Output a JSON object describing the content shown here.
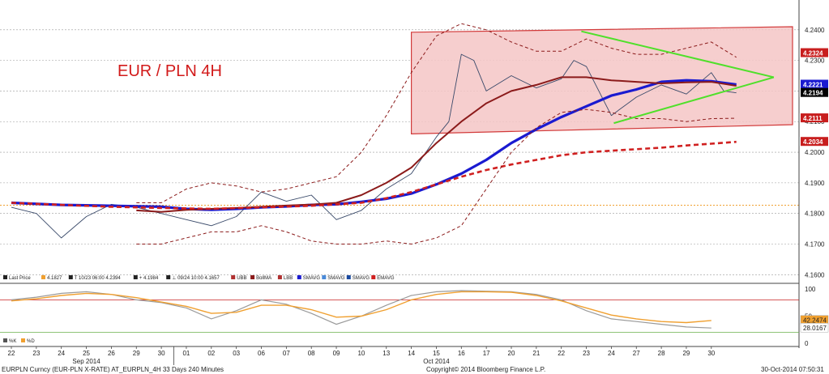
{
  "chart_data": {
    "type": "line",
    "title": "EUR / PLN 4H",
    "x_labels": [
      "22",
      "23",
      "24",
      "25",
      "26",
      "29",
      "30",
      "01",
      "02",
      "03",
      "06",
      "07",
      "08",
      "09",
      "10",
      "13",
      "14",
      "15",
      "16",
      "17",
      "20",
      "21",
      "22",
      "23",
      "24",
      "27",
      "28",
      "29",
      "30"
    ],
    "month_labels": [
      "Sep 2014",
      "Oct 2014"
    ],
    "y_ticks": [
      "4.1600",
      "4.1700",
      "4.1800",
      "4.1900",
      "4.2000",
      "4.2100",
      "4.2200",
      "4.2300",
      "4.2400"
    ],
    "ylim": [
      4.1585,
      4.2455
    ],
    "price_badges": [
      {
        "label": "4.2324",
        "value": 4.2324,
        "color": "#c81e1e"
      },
      {
        "label": "4.2217",
        "value": 4.2217,
        "color": "#c81e1e"
      },
      {
        "label": "4.2221",
        "value": 4.2221,
        "color": "#1a1ad0"
      },
      {
        "label": "4.2194",
        "value": 4.2194,
        "color": "#000000"
      },
      {
        "label": "4.2111",
        "value": 4.2111,
        "color": "#c81e1e"
      },
      {
        "label": "4.2034",
        "value": 4.2034,
        "color": "#c81e1e"
      }
    ],
    "orange_line": 4.1827,
    "legend": [
      {
        "label": "Last Price",
        "color": "#222222"
      },
      {
        "label": "4.1827",
        "color": "#f0a030"
      },
      {
        "label": "T 10/23 06:00 4.2394",
        "color": "#222222"
      },
      {
        "label": "+ 4.1984",
        "color": "#222222"
      },
      {
        "label": "⊥ 09/24 10:00 4.1657",
        "color": "#222222"
      },
      {
        "label": "UBB",
        "color": "#b03030"
      },
      {
        "label": "BollMA",
        "color": "#8b1a1a"
      },
      {
        "label": "LBB",
        "color": "#b03030"
      },
      {
        "label": "SMAVG",
        "color": "#1a1ad0"
      },
      {
        "label": "SMAVG",
        "color": "#4a8ad8"
      },
      {
        "label": "SMAVG",
        "color": "#1a4aa0"
      },
      {
        "label": "EMAVG",
        "color": "#d02020"
      }
    ],
    "series": [
      {
        "name": "Last Price",
        "x": [
          0,
          1,
          2,
          3,
          4,
          5,
          6,
          7,
          8,
          9,
          10,
          11,
          12,
          13,
          14,
          15,
          16,
          17,
          17.5,
          18,
          18.5,
          19,
          20,
          21,
          22,
          22.5,
          23,
          24,
          25,
          26,
          27,
          28,
          28.5,
          29
        ],
        "values": [
          4.182,
          4.18,
          4.172,
          4.179,
          4.183,
          4.182,
          4.18,
          4.178,
          4.176,
          4.179,
          4.187,
          4.184,
          4.186,
          4.178,
          4.181,
          4.188,
          4.193,
          4.205,
          4.21,
          4.232,
          4.23,
          4.22,
          4.225,
          4.221,
          4.224,
          4.23,
          4.228,
          4.212,
          4.218,
          4.222,
          4.219,
          4.226,
          4.22,
          4.2194
        ]
      },
      {
        "name": "SMAVG",
        "x": [
          0,
          2,
          4,
          6,
          7,
          8,
          9,
          10,
          11,
          12,
          13,
          14,
          15,
          16,
          17,
          18,
          19,
          20,
          21,
          22,
          23,
          24,
          25,
          26,
          27,
          28,
          29
        ],
        "values": [
          4.1835,
          4.1828,
          4.1825,
          4.1822,
          4.1815,
          4.1812,
          4.1815,
          4.182,
          4.1823,
          4.1828,
          4.183,
          4.1838,
          4.1848,
          4.1865,
          4.1895,
          4.193,
          4.1975,
          4.203,
          4.2075,
          4.2115,
          4.215,
          4.2185,
          4.2205,
          4.223,
          4.2235,
          4.2232,
          4.2221
        ]
      },
      {
        "name": "BollMA",
        "x": [
          5,
          6,
          7,
          8,
          9,
          10,
          11,
          12,
          13,
          14,
          15,
          16,
          17,
          18,
          19,
          20,
          21,
          22,
          23,
          24,
          25,
          26,
          27,
          28,
          29
        ],
        "values": [
          4.181,
          4.1805,
          4.1812,
          4.1815,
          4.1818,
          4.1822,
          4.1826,
          4.1829,
          4.1835,
          4.186,
          4.19,
          4.195,
          4.203,
          4.21,
          4.216,
          4.22,
          4.222,
          4.2245,
          4.2245,
          4.2235,
          4.223,
          4.2225,
          4.2228,
          4.223,
          4.2217
        ]
      },
      {
        "name": "EMAVG",
        "x": [
          0,
          2,
          4,
          6,
          8,
          10,
          12,
          14,
          15,
          16,
          17,
          18,
          19,
          20,
          21,
          22,
          23,
          24,
          25,
          26,
          27,
          28,
          29
        ],
        "values": [
          4.1835,
          4.1828,
          4.1822,
          4.1818,
          4.1815,
          4.182,
          4.1825,
          4.1835,
          4.185,
          4.187,
          4.1895,
          4.192,
          4.1942,
          4.196,
          4.1975,
          4.199,
          4.2,
          4.2005,
          4.201,
          4.2015,
          4.2022,
          4.2028,
          4.2034
        ]
      },
      {
        "name": "UBB",
        "x": [
          5,
          6,
          7,
          8,
          9,
          10,
          11,
          12,
          13,
          14,
          15,
          16,
          17,
          18,
          19,
          20,
          21,
          22,
          23,
          24,
          25,
          26,
          27,
          28,
          29
        ],
        "values": [
          4.1835,
          4.1835,
          4.188,
          4.19,
          4.189,
          4.187,
          4.188,
          4.19,
          4.192,
          4.2,
          4.212,
          4.226,
          4.238,
          4.242,
          4.24,
          4.236,
          4.233,
          4.233,
          4.237,
          4.234,
          4.232,
          4.232,
          4.234,
          4.236,
          4.231
        ]
      },
      {
        "name": "LBB",
        "x": [
          5,
          6,
          7,
          8,
          9,
          10,
          11,
          12,
          13,
          14,
          15,
          16,
          17,
          18,
          19,
          20,
          21,
          22,
          23,
          24,
          25,
          26,
          27,
          28,
          29
        ],
        "values": [
          4.17,
          4.17,
          4.172,
          4.174,
          4.174,
          4.176,
          4.174,
          4.171,
          4.17,
          4.17,
          4.171,
          4.17,
          4.172,
          4.176,
          4.188,
          4.2,
          4.208,
          4.213,
          4.214,
          4.213,
          4.211,
          4.211,
          4.21,
          4.211,
          4.2111
        ]
      }
    ],
    "overlays": {
      "channel": {
        "x_start": 16,
        "x_end": 32,
        "upper": [
          4.2392,
          4.241
        ],
        "lower": [
          4.206,
          4.209
        ]
      },
      "triangle": {
        "upper": [
          [
            22.8,
            4.2395
          ],
          [
            30.5,
            4.2245
          ]
        ],
        "lower": [
          [
            24.1,
            4.2095
          ],
          [
            30.5,
            4.2245
          ]
        ]
      }
    },
    "oscillator": {
      "y_ticks": [
        "100",
        "50",
        "0"
      ],
      "badges": [
        {
          "label": "42.2474",
          "value": 42.2474,
          "color": "#f0a030"
        },
        {
          "label": "28.0167",
          "value": 28.0167,
          "color": "#ffffff"
        }
      ],
      "legend": [
        {
          "label": "%K",
          "color": "#555555"
        },
        {
          "label": "%D",
          "color": "#f0a030"
        }
      ],
      "k_values": [
        80,
        85,
        92,
        95,
        90,
        80,
        75,
        65,
        45,
        60,
        80,
        72,
        55,
        35,
        50,
        70,
        88,
        95,
        97,
        96,
        95,
        90,
        80,
        60,
        45,
        40,
        35,
        30,
        28
      ],
      "d_values": [
        78,
        82,
        88,
        92,
        90,
        84,
        76,
        68,
        55,
        57,
        70,
        70,
        62,
        48,
        50,
        62,
        80,
        90,
        95,
        95,
        94,
        88,
        78,
        65,
        52,
        45,
        40,
        38,
        42
      ]
    }
  },
  "footer": {
    "left": "EURPLN Curncy (EUR-PLN X-RATE) AT_EURPLN_4H 33 Days 240 Minutes",
    "center": "Copyright© 2014 Bloomberg Finance L.P.",
    "right": "30-Oct-2014 07:50:31"
  }
}
